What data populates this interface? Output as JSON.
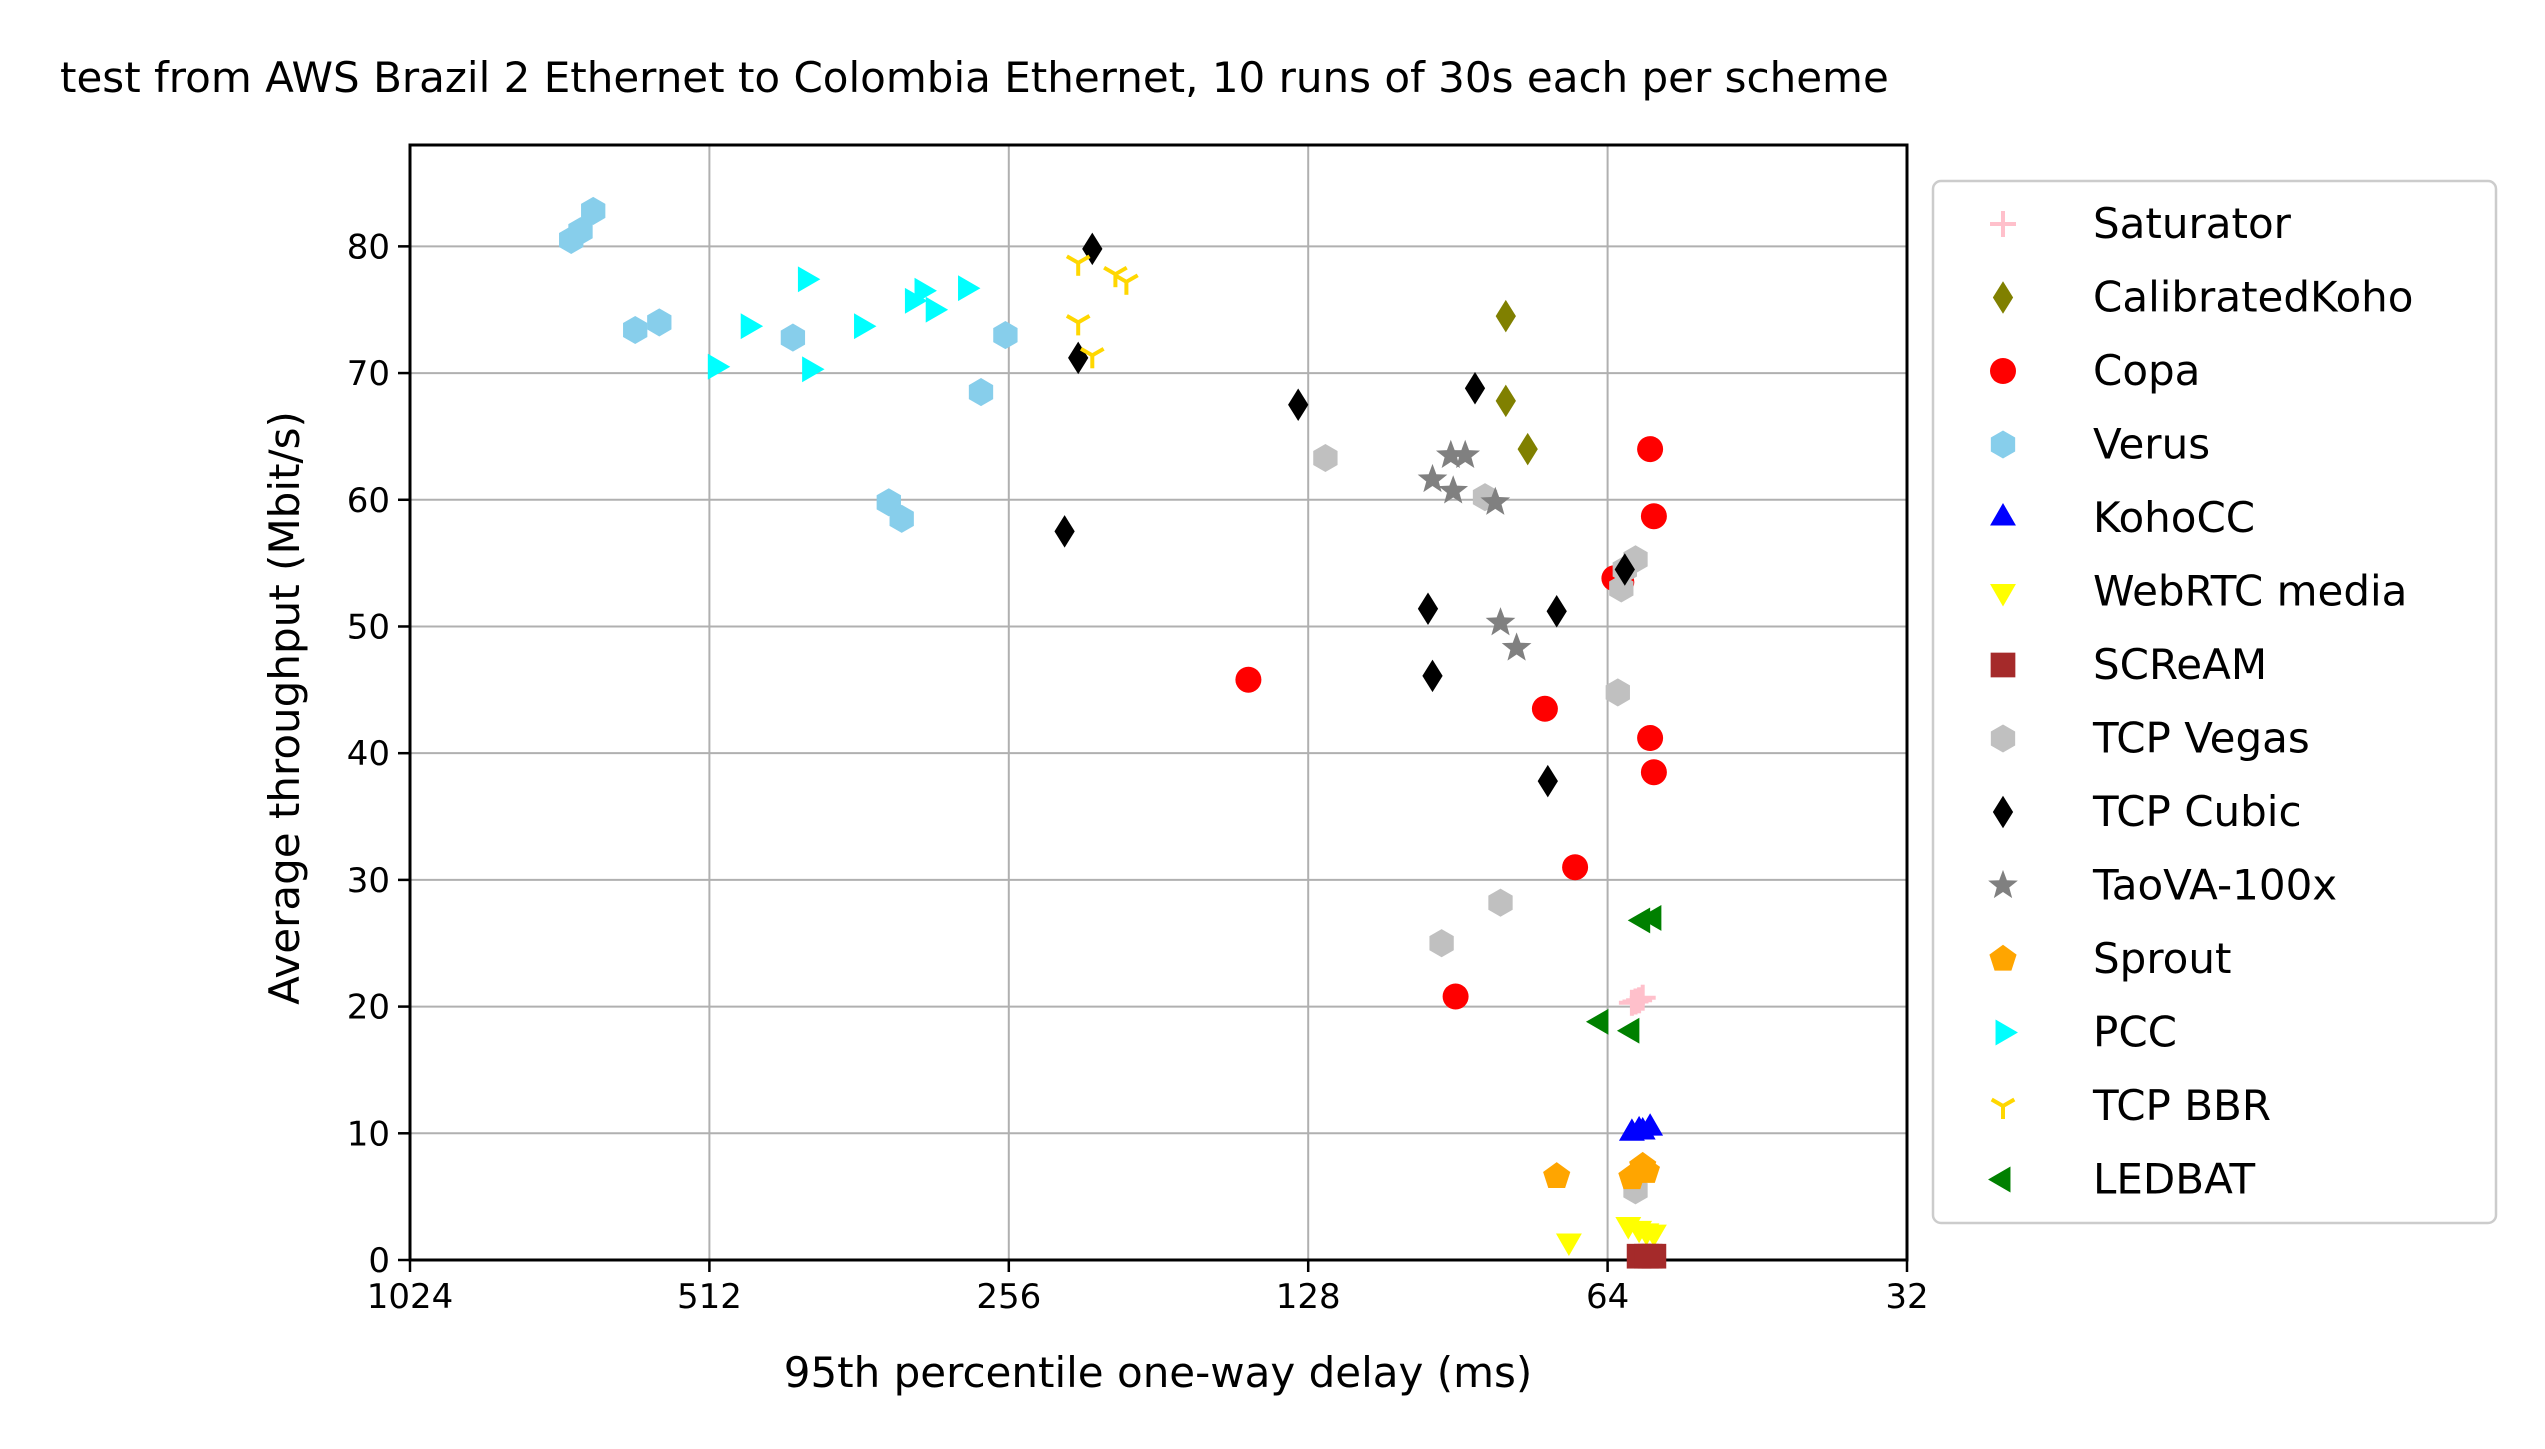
{
  "chart_data": {
    "type": "scatter",
    "title": "test from AWS Brazil 2 Ethernet to Colombia Ethernet, 10 runs of 30s each per scheme",
    "xlabel": "95th percentile one-way delay (ms)",
    "ylabel": "Average throughput (Mbit/s)",
    "x_scale": "log2-reversed",
    "xlim": [
      1024,
      32
    ],
    "ylim": [
      0,
      88
    ],
    "x_ticks": [
      1024,
      512,
      256,
      128,
      64,
      32
    ],
    "x_tick_labels": [
      "1024",
      "512",
      "256",
      "128",
      "64",
      "32"
    ],
    "y_ticks": [
      0,
      10,
      20,
      30,
      40,
      50,
      60,
      70,
      80
    ],
    "y_tick_labels": [
      "0",
      "10",
      "20",
      "30",
      "40",
      "50",
      "60",
      "70",
      "80"
    ],
    "grid": true,
    "legend_position": "outside-right",
    "series": [
      {
        "name": "Saturator",
        "color": "#ffc0cb",
        "marker": "plus",
        "points": [
          [
            60.5,
            20.3
          ],
          [
            59.0,
            20.7
          ],
          [
            59.5,
            20.5
          ],
          [
            60.0,
            20.4
          ]
        ]
      },
      {
        "name": "CalibratedKoho",
        "color": "#808000",
        "marker": "diamond",
        "points": [
          [
            81.0,
            74.5
          ],
          [
            81.0,
            67.8
          ],
          [
            77.0,
            64.0
          ]
        ]
      },
      {
        "name": "Copa",
        "color": "#ff0000",
        "marker": "circle",
        "points": [
          [
            58.0,
            64.0
          ],
          [
            57.5,
            58.7
          ],
          [
            63.0,
            53.8
          ],
          [
            62.0,
            53.5
          ],
          [
            58.0,
            41.2
          ],
          [
            57.5,
            38.5
          ],
          [
            74.0,
            43.5
          ],
          [
            147.0,
            45.8
          ],
          [
            69.0,
            31.0
          ],
          [
            91.0,
            20.8
          ]
        ]
      },
      {
        "name": "Verus",
        "color": "#87ceeb",
        "marker": "hexagon",
        "points": [
          [
            705.0,
            80.5
          ],
          [
            690.0,
            81.2
          ],
          [
            670.0,
            82.8
          ],
          [
            608.0,
            73.4
          ],
          [
            575.0,
            74.0
          ],
          [
            422.0,
            72.8
          ],
          [
            338.0,
            59.8
          ],
          [
            328.0,
            58.5
          ],
          [
            273.0,
            68.5
          ],
          [
            258.0,
            73.0
          ]
        ]
      },
      {
        "name": "KohoCC",
        "color": "#0000ff",
        "marker": "triangle-up",
        "points": [
          [
            60.5,
            10.0
          ],
          [
            59.5,
            10.2
          ],
          [
            58.0,
            10.4
          ],
          [
            59.0,
            10.1
          ]
        ]
      },
      {
        "name": "WebRTC media",
        "color": "#ffff00",
        "marker": "triangle-down",
        "points": [
          [
            70.0,
            1.5
          ],
          [
            61.0,
            2.8
          ],
          [
            59.5,
            2.5
          ],
          [
            58.5,
            2.3
          ],
          [
            57.5,
            2.2
          ]
        ]
      },
      {
        "name": "SCReAM",
        "color": "#a52a2a",
        "marker": "square",
        "points": [
          [
            59.5,
            0.3
          ],
          [
            58.5,
            0.3
          ],
          [
            57.5,
            0.3
          ],
          [
            58.0,
            0.3
          ]
        ]
      },
      {
        "name": "TCP Vegas",
        "color": "#c0c0c0",
        "marker": "hexagon",
        "points": [
          [
            123.0,
            63.3
          ],
          [
            85.0,
            60.2
          ],
          [
            62.0,
            53.0
          ],
          [
            60.0,
            55.3
          ],
          [
            61.5,
            54.5
          ],
          [
            62.5,
            44.8
          ],
          [
            82.0,
            28.2
          ],
          [
            94.0,
            25.0
          ],
          [
            60.0,
            5.5
          ]
        ]
      },
      {
        "name": "TCP Cubic",
        "color": "#000000",
        "marker": "diamond",
        "points": [
          [
            211.0,
            79.8
          ],
          [
            218.0,
            71.2
          ],
          [
            131.0,
            67.5
          ],
          [
            87.0,
            68.8
          ],
          [
            225.0,
            57.5
          ],
          [
            61.5,
            54.5
          ],
          [
            97.0,
            51.4
          ],
          [
            72.0,
            51.2
          ],
          [
            96.0,
            46.1
          ],
          [
            73.5,
            37.8
          ]
        ]
      },
      {
        "name": "TaoVA-100x",
        "color": "#808080",
        "marker": "star",
        "points": [
          [
            92.0,
            63.5
          ],
          [
            89.0,
            63.5
          ],
          [
            96.0,
            61.6
          ],
          [
            91.5,
            60.7
          ],
          [
            83.0,
            59.8
          ],
          [
            82.0,
            50.3
          ],
          [
            79.0,
            48.3
          ]
        ]
      },
      {
        "name": "Sprout",
        "color": "#ffa500",
        "marker": "pentagon",
        "points": [
          [
            72.0,
            6.6
          ],
          [
            60.5,
            6.5
          ],
          [
            59.0,
            7.4
          ],
          [
            58.5,
            7.0
          ]
        ]
      },
      {
        "name": "PCC",
        "color": "#00ffff",
        "marker": "triangle-right",
        "points": [
          [
            410.0,
            77.4
          ],
          [
            360.0,
            73.7
          ],
          [
            468.0,
            73.7
          ],
          [
            406.0,
            70.3
          ],
          [
            505.0,
            70.5
          ],
          [
            320.0,
            75.7
          ],
          [
            313.0,
            76.5
          ],
          [
            305.0,
            75.0
          ],
          [
            283.0,
            76.7
          ]
        ]
      },
      {
        "name": "TCP BBR",
        "color": "#ffd700",
        "marker": "tri-down",
        "points": [
          [
            218.0,
            78.7
          ],
          [
            200.0,
            77.8
          ],
          [
            195.0,
            77.2
          ],
          [
            218.0,
            74.0
          ],
          [
            211.0,
            71.4
          ]
        ]
      },
      {
        "name": "LEDBAT",
        "color": "#008000",
        "marker": "triangle-left",
        "points": [
          [
            57.5,
            27.0
          ],
          [
            59.0,
            26.8
          ],
          [
            65.0,
            18.8
          ],
          [
            60.5,
            18.1
          ]
        ]
      }
    ]
  }
}
